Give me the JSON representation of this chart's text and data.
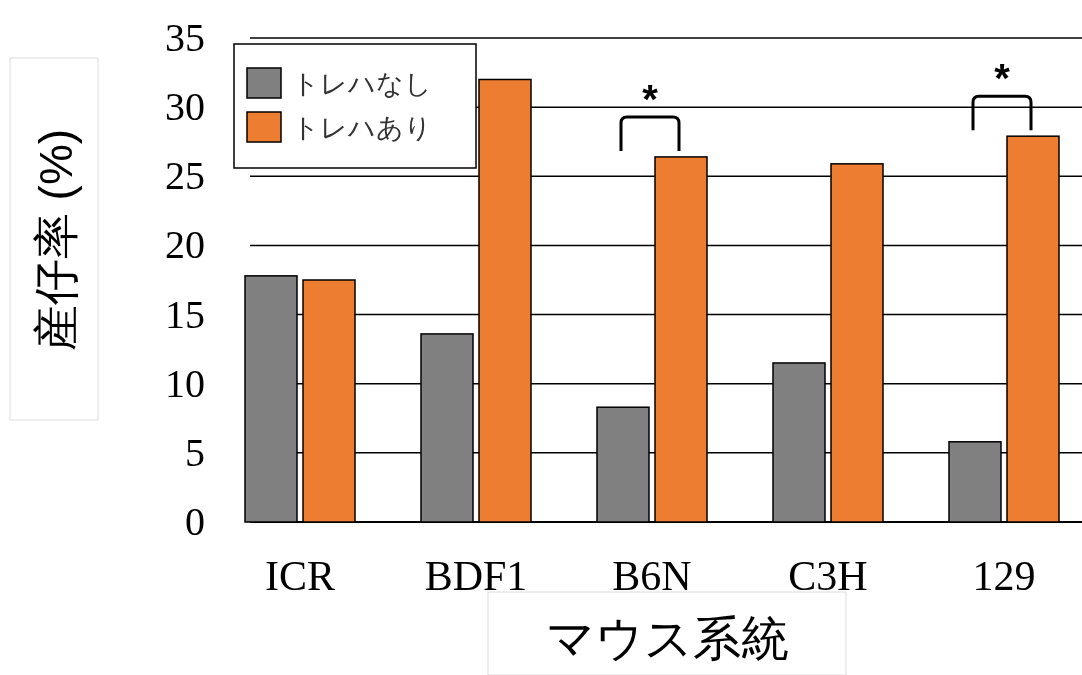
{
  "chart_data": {
    "type": "bar",
    "xlabel": "マウス系統",
    "ylabel": "産仔率 (%)",
    "categories": [
      "ICR",
      "BDF1",
      "B6N",
      "C3H",
      "129"
    ],
    "series": [
      {
        "name": "トレハなし",
        "color": "#808080",
        "values": [
          17.8,
          13.6,
          8.3,
          11.5,
          5.8
        ]
      },
      {
        "name": "トレハあり",
        "color": "#ed7d31",
        "values": [
          17.5,
          32.0,
          26.4,
          25.9,
          27.9
        ]
      }
    ],
    "ylim": [
      0,
      35
    ],
    "yticks": [
      0,
      5,
      10,
      15,
      20,
      25,
      30,
      35
    ],
    "grid": "y",
    "legend": "top left",
    "annotations": [
      {
        "text": "*",
        "x": "B6N",
        "y": 26.4
      },
      {
        "text": "*",
        "x": "129",
        "y": 27.9
      }
    ]
  }
}
